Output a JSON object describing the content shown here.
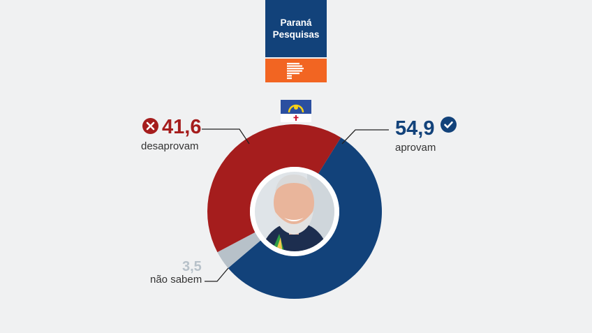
{
  "brand": {
    "name_line1": "Paraná",
    "name_line2": "Pesquisas",
    "logo_icon": "paranapesquisas-p-logo",
    "colors": {
      "brand_blue": "#12427a",
      "brand_orange": "#f26522"
    }
  },
  "flag_icon": "pernambuco-flag",
  "portrait_icon": "politician-portrait",
  "chart_data": {
    "type": "pie",
    "style": "donut",
    "categories": [
      "aprovam",
      "desaprovam",
      "não sabem"
    ],
    "values": [
      54.9,
      41.6,
      3.5
    ],
    "value_labels": [
      "54,9",
      "41,6",
      "3,5"
    ],
    "colors": [
      "#12427a",
      "#a51d1d",
      "#b7c1c9"
    ],
    "markers": {
      "aprovam": "check-circle-icon",
      "desaprovam": "x-circle-icon"
    }
  }
}
